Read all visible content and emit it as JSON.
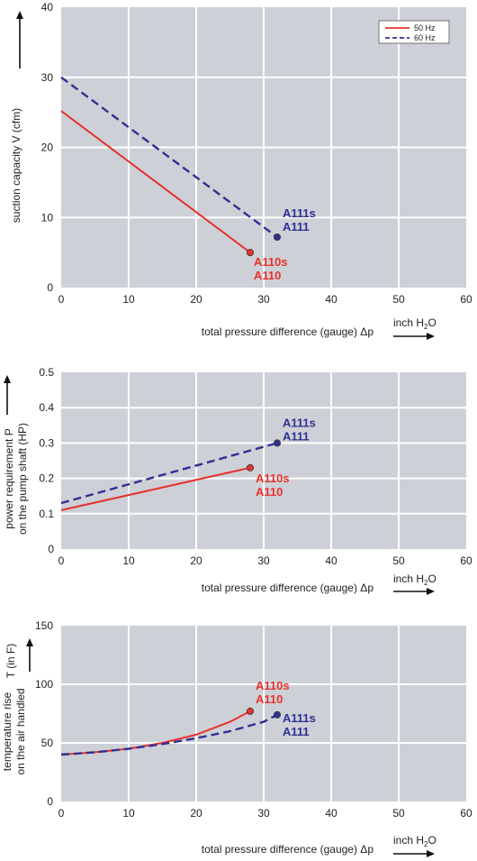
{
  "chart_data": [
    {
      "type": "line",
      "title": "",
      "xlabel": "total pressure difference (gauge)  Δp",
      "xunit": "inch H2O",
      "ylabel": "suction capacity V (cfm)",
      "xlim": [
        0,
        60
      ],
      "ylim": [
        0,
        40
      ],
      "xticks": [
        "0",
        "10",
        "20",
        "30",
        "40",
        "50",
        "60"
      ],
      "yticks": [
        "0",
        "10",
        "20",
        "30",
        "40"
      ],
      "grid": true,
      "legend": "top-right",
      "series": [
        {
          "name": "50 Hz",
          "color": "#e8322c",
          "dash": false,
          "x": [
            0,
            28
          ],
          "y": [
            25.2,
            5
          ],
          "end_label": [
            "A110s",
            "A110"
          ]
        },
        {
          "name": "60 Hz",
          "color": "#2e3192",
          "dash": true,
          "x": [
            0,
            32
          ],
          "y": [
            30,
            7.2
          ],
          "end_label": [
            "A111s",
            "A111"
          ]
        }
      ]
    },
    {
      "type": "line",
      "title": "",
      "xlabel": "total pressure difference (gauge)  Δp",
      "xunit": "inch H2O",
      "ylabel": [
        "power requirement P",
        "on the pump shaft (HP)"
      ],
      "xlim": [
        0,
        60
      ],
      "ylim": [
        0,
        0.5
      ],
      "xticks": [
        "0",
        "10",
        "20",
        "30",
        "40",
        "50",
        "60"
      ],
      "yticks": [
        "0",
        "0.1",
        "0.2",
        "0.3",
        "0.4",
        "0.5"
      ],
      "grid": true,
      "series": [
        {
          "color": "#e8322c",
          "dash": false,
          "x": [
            0,
            28
          ],
          "y": [
            0.11,
            0.23
          ],
          "end_label": [
            "A110s",
            "A110"
          ]
        },
        {
          "color": "#2e3192",
          "dash": true,
          "x": [
            0,
            32
          ],
          "y": [
            0.13,
            0.3
          ],
          "end_label": [
            "A111s",
            "A111"
          ]
        }
      ]
    },
    {
      "type": "line",
      "title": "",
      "xlabel": "total pressure difference (gauge)  Δp",
      "xunit": "inch H2O",
      "ylabel": [
        "temperature rise",
        "on the air handled"
      ],
      "ylabel_top": "T   (in F)",
      "xlim": [
        0,
        60
      ],
      "ylim": [
        0,
        150
      ],
      "xticks": [
        "0",
        "10",
        "20",
        "30",
        "40",
        "50",
        "60"
      ],
      "yticks": [
        "0",
        "50",
        "100",
        "150"
      ],
      "grid": true,
      "series": [
        {
          "color": "#e8322c",
          "dash": false,
          "x": [
            0,
            5,
            10,
            15,
            20,
            25,
            28
          ],
          "y": [
            40,
            42,
            45,
            50,
            57,
            68,
            77
          ],
          "end_label": [
            "A110s",
            "A110"
          ]
        },
        {
          "color": "#2e3192",
          "dash": true,
          "x": [
            0,
            5,
            10,
            15,
            20,
            25,
            30,
            32
          ],
          "y": [
            40,
            42,
            45,
            49,
            54,
            60,
            68,
            74
          ],
          "end_label": [
            "A111s",
            "A111"
          ]
        }
      ]
    }
  ]
}
